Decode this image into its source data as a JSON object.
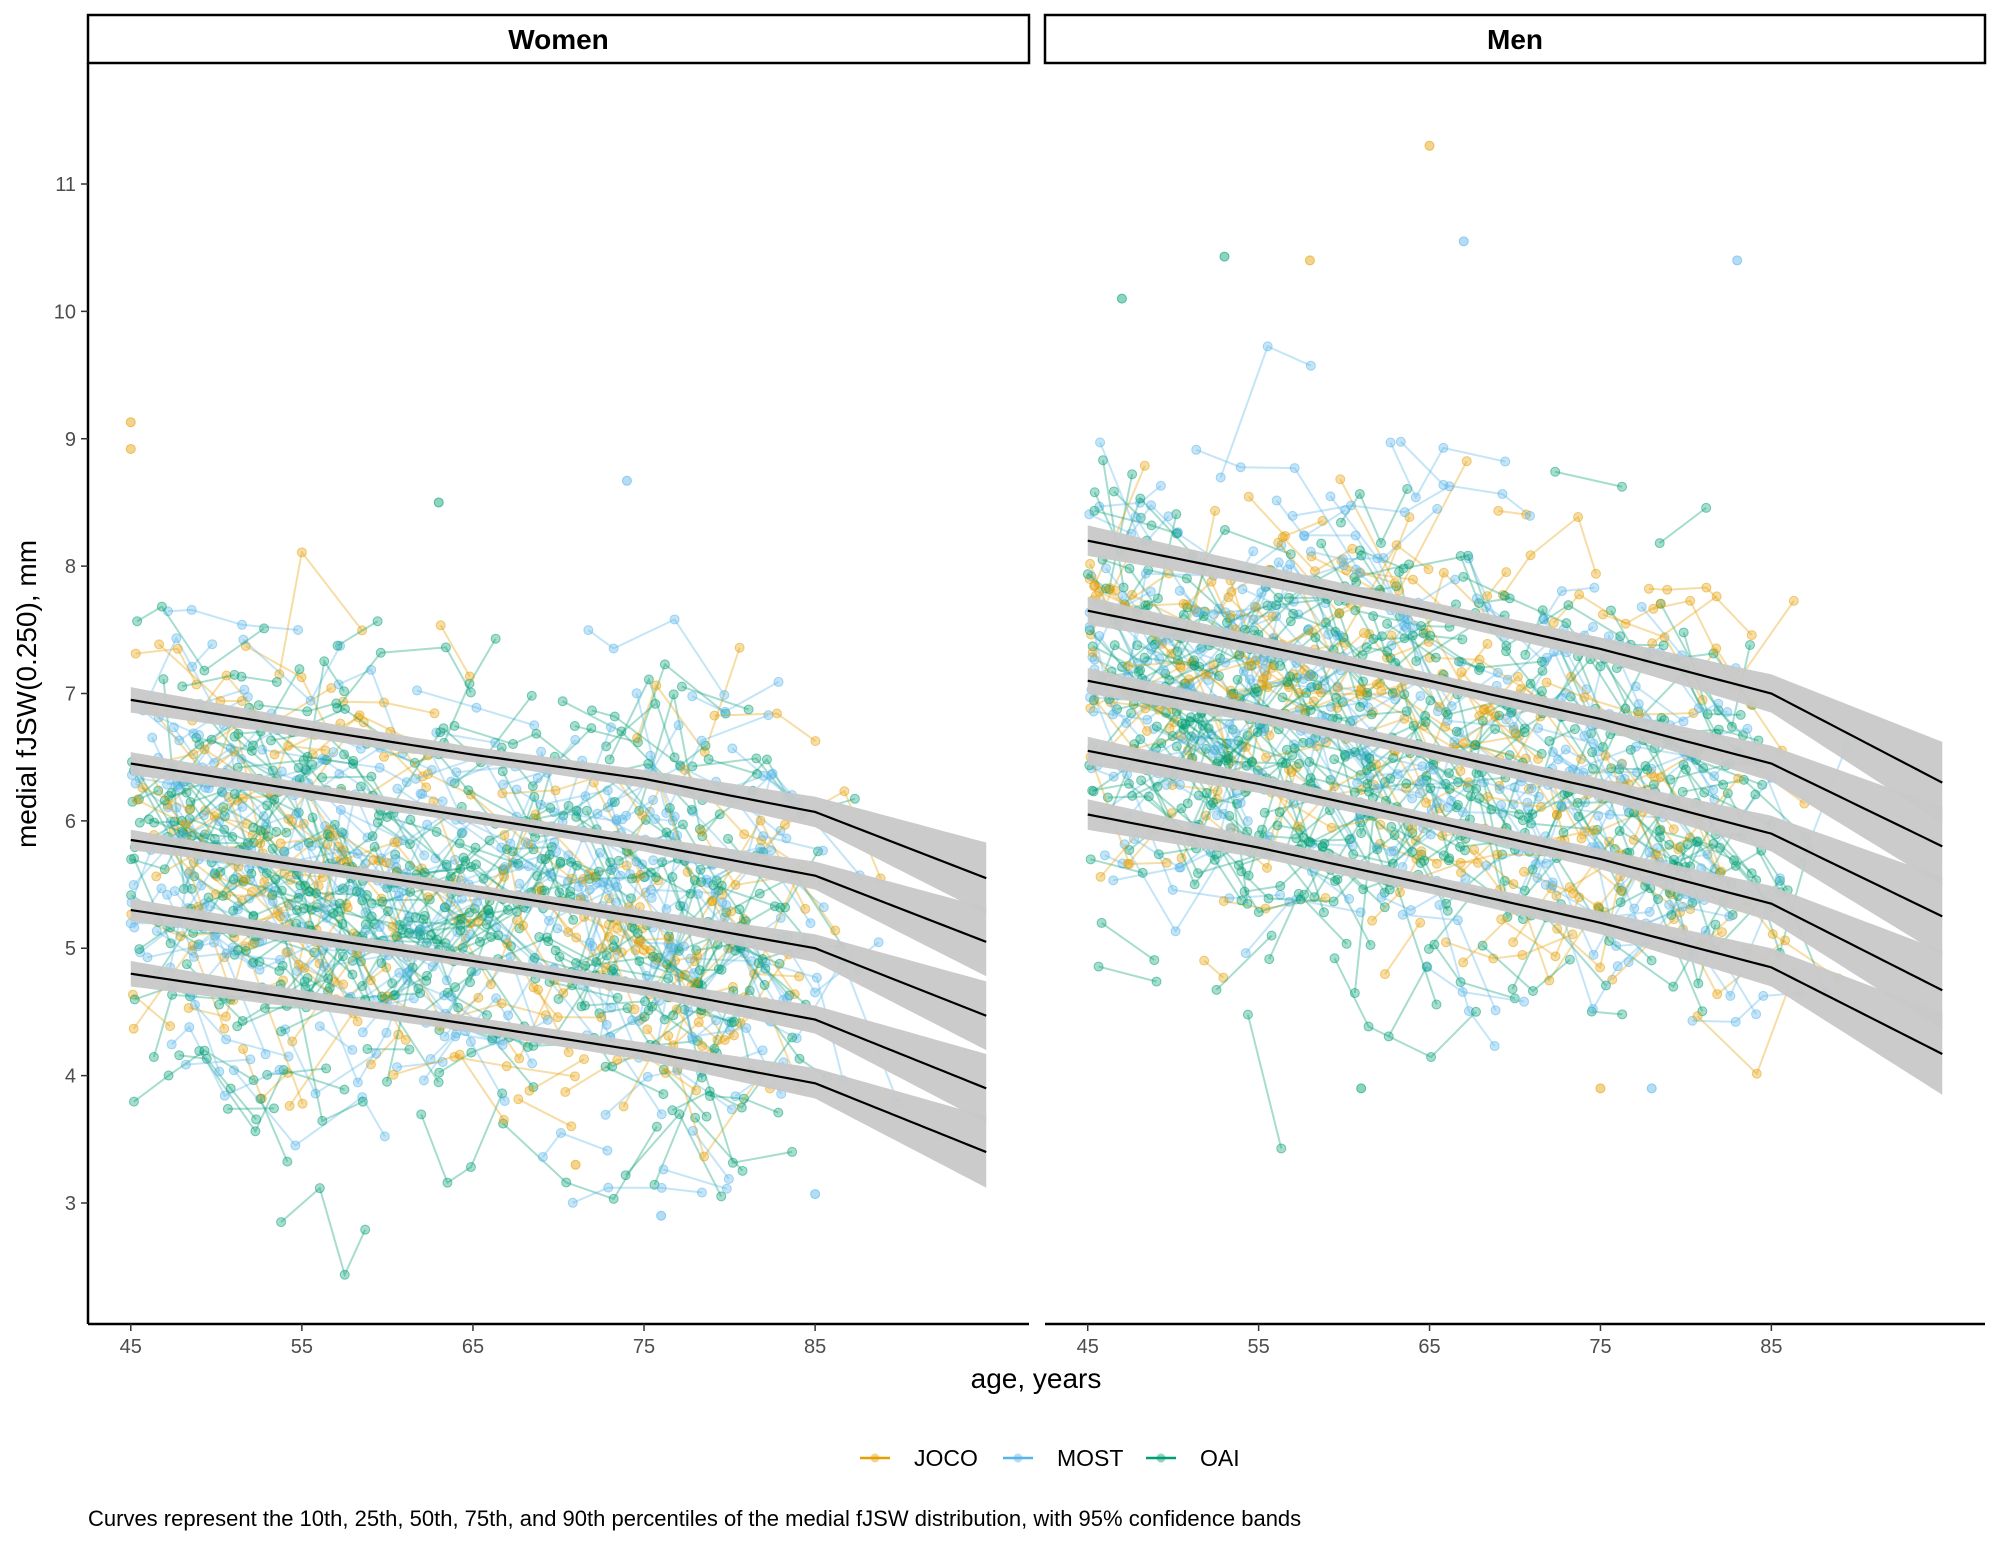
{
  "chart_data": {
    "type": "line",
    "subtype": "faceted spaghetti plot with percentile curves",
    "facets": [
      "Women",
      "Men"
    ],
    "xlabel": "age, years",
    "ylabel": "medial fJSW(0.250), mm",
    "x_ticks": [
      45,
      55,
      65,
      75,
      85
    ],
    "y_ticks": [
      3,
      4,
      5,
      6,
      7,
      8,
      9,
      10,
      11
    ],
    "xlim": [
      42.5,
      97.5
    ],
    "ylim": [
      2.05,
      11.95
    ],
    "grid": false,
    "legend": {
      "placement": "bottom",
      "entries": [
        {
          "name": "JOCO",
          "color": "#E69F00"
        },
        {
          "name": "MOST",
          "color": "#56B4E9"
        },
        {
          "name": "OAI",
          "color": "#009E73"
        }
      ]
    },
    "caption": "Curves represent the 10th, 25th, 50th, 75th, and 90th percentiles of the medial fJSW distribution, with 95% confidence bands",
    "curve_color": "#000000",
    "band_color": "#C8C8C8",
    "percentile_curves": {
      "ages": [
        45,
        55,
        65,
        75,
        85,
        95
      ],
      "Women": [
        {
          "percentile": 90,
          "values": [
            6.95,
            6.73,
            6.52,
            6.33,
            6.07,
            5.55
          ],
          "ci_halfwidth": [
            0.1,
            0.07,
            0.06,
            0.07,
            0.12,
            0.28
          ]
        },
        {
          "percentile": 75,
          "values": [
            6.45,
            6.24,
            6.03,
            5.82,
            5.57,
            5.05
          ],
          "ci_halfwidth": [
            0.09,
            0.06,
            0.05,
            0.06,
            0.11,
            0.27
          ]
        },
        {
          "percentile": 50,
          "values": [
            5.85,
            5.65,
            5.45,
            5.24,
            5.0,
            4.47
          ],
          "ci_halfwidth": [
            0.08,
            0.05,
            0.05,
            0.06,
            0.11,
            0.27
          ]
        },
        {
          "percentile": 25,
          "values": [
            5.3,
            5.1,
            4.9,
            4.69,
            4.44,
            3.9
          ],
          "ci_halfwidth": [
            0.09,
            0.06,
            0.05,
            0.06,
            0.11,
            0.27
          ]
        },
        {
          "percentile": 10,
          "values": [
            4.8,
            4.6,
            4.4,
            4.19,
            3.94,
            3.4
          ],
          "ci_halfwidth": [
            0.1,
            0.07,
            0.06,
            0.07,
            0.12,
            0.28
          ]
        }
      ],
      "Men": [
        {
          "percentile": 90,
          "values": [
            8.2,
            7.93,
            7.65,
            7.35,
            7.0,
            6.3
          ],
          "ci_halfwidth": [
            0.12,
            0.08,
            0.07,
            0.09,
            0.15,
            0.32
          ]
        },
        {
          "percentile": 75,
          "values": [
            7.65,
            7.38,
            7.1,
            6.8,
            6.45,
            5.8
          ],
          "ci_halfwidth": [
            0.11,
            0.07,
            0.06,
            0.08,
            0.14,
            0.31
          ]
        },
        {
          "percentile": 50,
          "values": [
            7.1,
            6.84,
            6.55,
            6.25,
            5.9,
            5.25
          ],
          "ci_halfwidth": [
            0.1,
            0.07,
            0.06,
            0.08,
            0.14,
            0.31
          ]
        },
        {
          "percentile": 25,
          "values": [
            6.55,
            6.29,
            6.0,
            5.7,
            5.35,
            4.67
          ],
          "ci_halfwidth": [
            0.11,
            0.07,
            0.06,
            0.08,
            0.14,
            0.31
          ]
        },
        {
          "percentile": 10,
          "values": [
            6.05,
            5.79,
            5.5,
            5.2,
            4.85,
            4.17
          ],
          "ci_halfwidth": [
            0.12,
            0.08,
            0.07,
            0.09,
            0.15,
            0.32
          ]
        }
      ]
    },
    "notable_points": [
      {
        "facet": "Women",
        "cohort": "JOCO",
        "age": 45,
        "value": 9.13
      },
      {
        "facet": "Women",
        "cohort": "JOCO",
        "age": 45,
        "value": 8.92
      },
      {
        "facet": "Women",
        "cohort": "MOST",
        "age": 74,
        "value": 8.67
      },
      {
        "facet": "Women",
        "cohort": "OAI",
        "age": 63,
        "value": 8.5
      },
      {
        "facet": "Women",
        "cohort": "MOST",
        "age": 76,
        "value": 2.9
      },
      {
        "facet": "Women",
        "cohort": "MOST",
        "age": 85,
        "value": 3.07
      },
      {
        "facet": "Women",
        "cohort": "JOCO",
        "age": 71,
        "value": 3.3
      },
      {
        "facet": "Men",
        "cohort": "JOCO",
        "age": 65,
        "value": 11.3
      },
      {
        "facet": "Men",
        "cohort": "MOST",
        "age": 67,
        "value": 10.55
      },
      {
        "facet": "Men",
        "cohort": "OAI",
        "age": 53,
        "value": 10.43
      },
      {
        "facet": "Men",
        "cohort": "MOST",
        "age": 83,
        "value": 10.4
      },
      {
        "facet": "Men",
        "cohort": "JOCO",
        "age": 58,
        "value": 10.4
      },
      {
        "facet": "Men",
        "cohort": "OAI",
        "age": 47,
        "value": 10.1
      },
      {
        "facet": "Men",
        "cohort": "JOCO",
        "age": 75,
        "value": 3.9
      },
      {
        "facet": "Men",
        "cohort": "MOST",
        "age": 78,
        "value": 3.9
      },
      {
        "facet": "Men",
        "cohort": "OAI",
        "age": 61,
        "value": 3.9
      }
    ]
  }
}
